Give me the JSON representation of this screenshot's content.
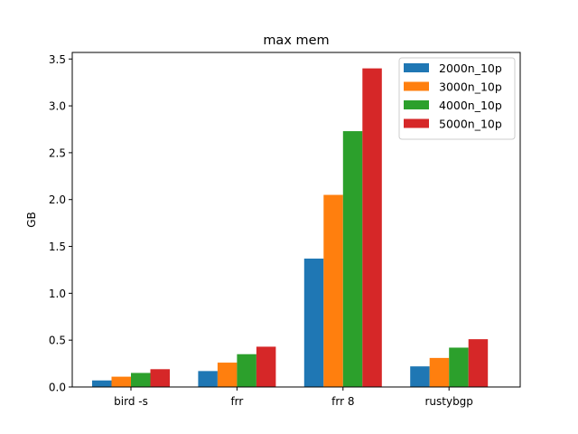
{
  "chart_data": {
    "type": "bar",
    "title": "max mem",
    "xlabel": "",
    "ylabel": "GB",
    "ylim": [
      0,
      3.57
    ],
    "yticks": [
      "0.0",
      "0.5",
      "1.0",
      "1.5",
      "2.0",
      "2.5",
      "3.0",
      "3.5"
    ],
    "categories": [
      "bird -s",
      "frr",
      "frr 8",
      "rustybgp"
    ],
    "series": [
      {
        "name": "2000n_10p",
        "color": "#1f77b4",
        "values": [
          0.07,
          0.17,
          1.37,
          0.22
        ]
      },
      {
        "name": "3000n_10p",
        "color": "#ff7f0e",
        "values": [
          0.11,
          0.26,
          2.05,
          0.31
        ]
      },
      {
        "name": "4000n_10p",
        "color": "#2ca02c",
        "values": [
          0.15,
          0.35,
          2.73,
          0.42
        ]
      },
      {
        "name": "5000n_10p",
        "color": "#d62728",
        "values": [
          0.19,
          0.43,
          3.4,
          0.51
        ]
      }
    ],
    "grid": false,
    "legend_position": "top-right"
  }
}
